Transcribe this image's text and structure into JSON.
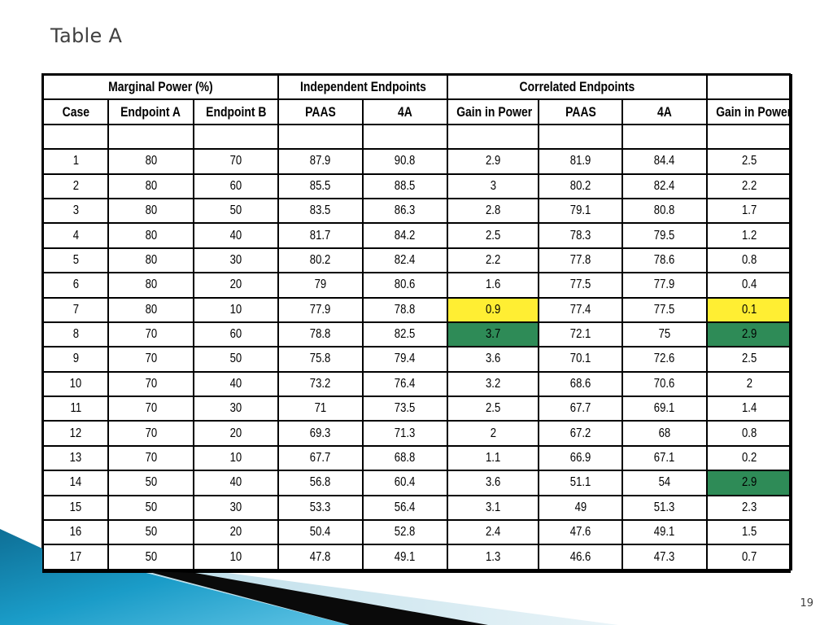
{
  "slide": {
    "title": "Table A",
    "page_number": "19"
  },
  "table": {
    "group_headers": {
      "marginal_power": "Marginal Power (%)",
      "independent": "Independent Endpoints",
      "correlated": "Correlated Endpoints"
    },
    "column_headers": [
      "Case",
      "Endpoint A",
      "Endpoint B",
      "PAAS",
      "4A",
      "Gain in Power",
      "PAAS",
      "4A",
      "Gain in Power"
    ],
    "rows": [
      [
        "1",
        "80",
        "70",
        "87.9",
        "90.8",
        "2.9",
        "81.9",
        "84.4",
        "2.5"
      ],
      [
        "2",
        "80",
        "60",
        "85.5",
        "88.5",
        "3",
        "80.2",
        "82.4",
        "2.2"
      ],
      [
        "3",
        "80",
        "50",
        "83.5",
        "86.3",
        "2.8",
        "79.1",
        "80.8",
        "1.7"
      ],
      [
        "4",
        "80",
        "40",
        "81.7",
        "84.2",
        "2.5",
        "78.3",
        "79.5",
        "1.2"
      ],
      [
        "5",
        "80",
        "30",
        "80.2",
        "82.4",
        "2.2",
        "77.8",
        "78.6",
        "0.8"
      ],
      [
        "6",
        "80",
        "20",
        "79",
        "80.6",
        "1.6",
        "77.5",
        "77.9",
        "0.4"
      ],
      [
        "7",
        "80",
        "10",
        "77.9",
        "78.8",
        "0.9",
        "77.4",
        "77.5",
        "0.1"
      ],
      [
        "8",
        "70",
        "60",
        "78.8",
        "82.5",
        "3.7",
        "72.1",
        "75",
        "2.9"
      ],
      [
        "9",
        "70",
        "50",
        "75.8",
        "79.4",
        "3.6",
        "70.1",
        "72.6",
        "2.5"
      ],
      [
        "10",
        "70",
        "40",
        "73.2",
        "76.4",
        "3.2",
        "68.6",
        "70.6",
        "2"
      ],
      [
        "11",
        "70",
        "30",
        "71",
        "73.5",
        "2.5",
        "67.7",
        "69.1",
        "1.4"
      ],
      [
        "12",
        "70",
        "20",
        "69.3",
        "71.3",
        "2",
        "67.2",
        "68",
        "0.8"
      ],
      [
        "13",
        "70",
        "10",
        "67.7",
        "68.8",
        "1.1",
        "66.9",
        "67.1",
        "0.2"
      ],
      [
        "14",
        "50",
        "40",
        "56.8",
        "60.4",
        "3.6",
        "51.1",
        "54",
        "2.9"
      ],
      [
        "15",
        "50",
        "30",
        "53.3",
        "56.4",
        "3.1",
        "49",
        "51.3",
        "2.3"
      ],
      [
        "16",
        "50",
        "20",
        "50.4",
        "52.8",
        "2.4",
        "47.6",
        "49.1",
        "1.5"
      ],
      [
        "17",
        "50",
        "10",
        "47.8",
        "49.1",
        "1.3",
        "46.6",
        "47.3",
        "0.7"
      ]
    ],
    "highlights": {
      "yellow": "#ffee33",
      "green": "#2e8b57",
      "cells": [
        {
          "row": 6,
          "col": 5,
          "color": "yellow"
        },
        {
          "row": 6,
          "col": 8,
          "color": "yellow"
        },
        {
          "row": 7,
          "col": 5,
          "color": "green"
        },
        {
          "row": 7,
          "col": 8,
          "color": "green"
        },
        {
          "row": 13,
          "col": 8,
          "color": "green"
        }
      ]
    }
  },
  "decoration": {
    "colors": [
      "#0e6f96",
      "#1a9cc8",
      "#5fc3e4",
      "#cfe6ef",
      "#000000"
    ]
  }
}
